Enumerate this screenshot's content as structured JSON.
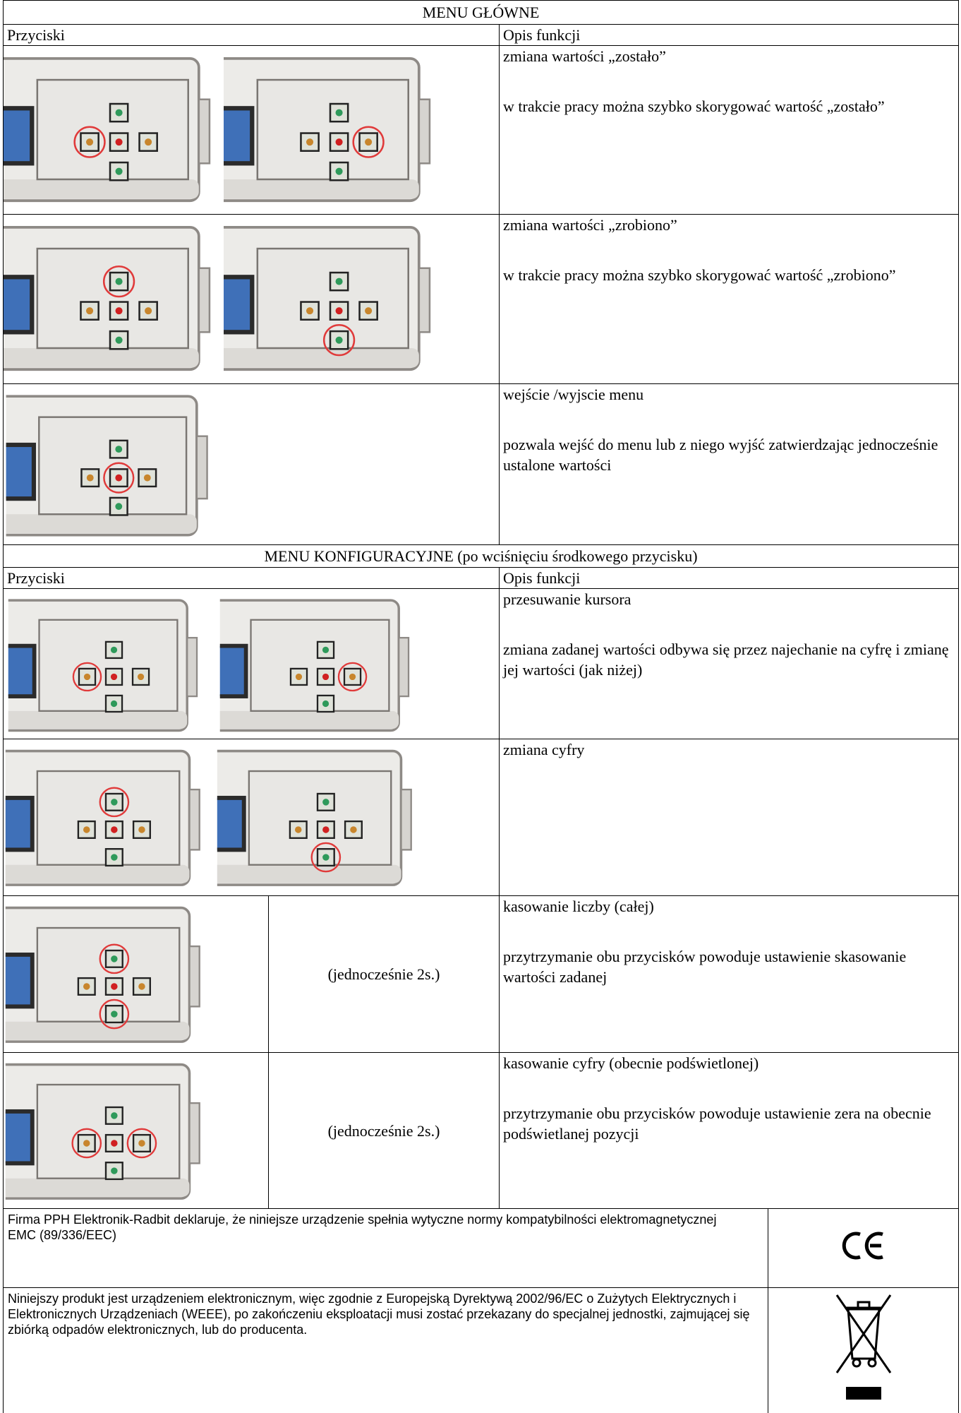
{
  "sections": [
    {
      "title": "MENU GŁÓWNE",
      "headers": [
        "Przyciski",
        "Opis funkcji"
      ],
      "rows": [
        {
          "description": [
            "zmiana wartości „zostało”",
            "w trakcie pracy można szybko skorygować wartość „zostało”"
          ]
        },
        {
          "description": [
            "zmiana wartości „zrobiono”",
            "w trakcie pracy można szybko skorygować wartość „zrobiono”"
          ]
        },
        {
          "description": [
            "wejście /wyjscie menu",
            "pozwala wejść do menu lub z niego wyjść zatwierdzając jednocześnie ustalone wartości"
          ]
        }
      ]
    },
    {
      "title": "MENU KONFIGURACYJNE (po wciśnięciu środkowego przycisku)",
      "headers": [
        "Przyciski",
        "Opis funkcji"
      ],
      "rows": [
        {
          "description": [
            "przesuwanie kursora",
            "zmiana zadanej wartości odbywa się przez najechanie na cyfrę i zmianę jej wartości (jak niżej)"
          ]
        },
        {
          "description": [
            "zmiana cyfry"
          ]
        },
        {
          "note": "(jednocześnie 2s.)",
          "description": [
            "kasowanie liczby (całej)",
            "przytrzymanie obu przycisków powoduje ustawienie skasowanie wartości zadanej"
          ]
        },
        {
          "note": "(jednocześnie 2s.)",
          "description": [
            "kasowanie cyfry (obecnie podświetlonej)",
            "przytrzymanie obu przycisków powoduje ustawienie zera na obecnie podświetlanej pozycji"
          ]
        }
      ]
    }
  ],
  "footer": [
    {
      "lines": [
        "Firma PPH Elektronik-Radbit deklaruje, że niniejsze urządzenie spełnia wytyczne normy kompatybilności elektromagnetycznej",
        "EMC (89/336/EEC)"
      ]
    },
    {
      "lines": [
        "Niniejszy produkt jest urządzeniem elektronicznym, więc zgodnie z Europejską Dyrektywą 2002/96/EC o Zużytych Elektrycznych i Elektronicznych Urządzeniach (WEEE), po zakończeniu eksploatacji musi zostać przekazany do specjalnej jednostki, zajmującej się zbiórką odpadów elektronicznych, lub do producenta."
      ]
    }
  ]
}
